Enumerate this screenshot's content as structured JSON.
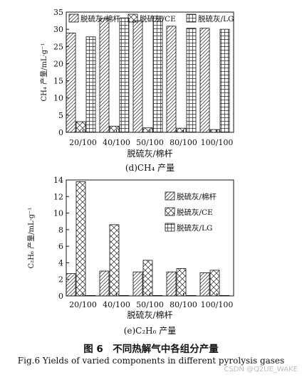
{
  "chart_data": [
    {
      "type": "bar",
      "title": "",
      "caption": "(d)CH₄ 产量",
      "xlabel": "脱硫灰/棉杆",
      "ylabel": "CH₄ 产量/mL·g⁻¹",
      "categories": [
        "20/100",
        "40/100",
        "50/100",
        "80/100",
        "100/100"
      ],
      "ylim": [
        0,
        35
      ],
      "yticks": [
        0,
        5,
        10,
        15,
        20,
        25,
        30,
        35
      ],
      "legend_position": "top",
      "series": [
        {
          "name": "脱硫灰/棉杆",
          "values": [
            28.9,
            33.2,
            32.5,
            30.9,
            30.3
          ]
        },
        {
          "name": "脱硫灰/CE",
          "values": [
            3.1,
            1.8,
            1.3,
            1.2,
            0.8
          ]
        },
        {
          "name": "脱硫灰/LG",
          "values": [
            27.8,
            33.3,
            33.8,
            30.3,
            30.0
          ]
        }
      ]
    },
    {
      "type": "bar",
      "title": "",
      "caption": "(e)C₂H₆ 产量",
      "xlabel": "脱硫灰/棉杆",
      "ylabel": "C₂H₆ 产量/mL·g⁻¹",
      "categories": [
        "20/100",
        "40/100",
        "50/100",
        "80/100",
        "100/100"
      ],
      "ylim": [
        0,
        14
      ],
      "yticks": [
        0,
        2,
        4,
        6,
        8,
        10,
        12,
        14
      ],
      "legend_position": "top-right",
      "series": [
        {
          "name": "脱硫灰/棉杆",
          "values": [
            2.7,
            3.0,
            2.9,
            2.9,
            2.8
          ]
        },
        {
          "name": "脱硫灰/CE",
          "values": [
            13.8,
            8.6,
            4.3,
            3.3,
            3.1
          ]
        },
        {
          "name": "脱硫灰/LG",
          "values": [
            0.05,
            0.05,
            0.05,
            0.05,
            0.05
          ]
        }
      ]
    }
  ],
  "figure": {
    "title": "图 6　不同热解气中各组分产量",
    "english_caption": "Fig.6 Yields of varied components in different pyrolysis gases"
  },
  "watermark": "CSDN @Q2UE_WAKE"
}
